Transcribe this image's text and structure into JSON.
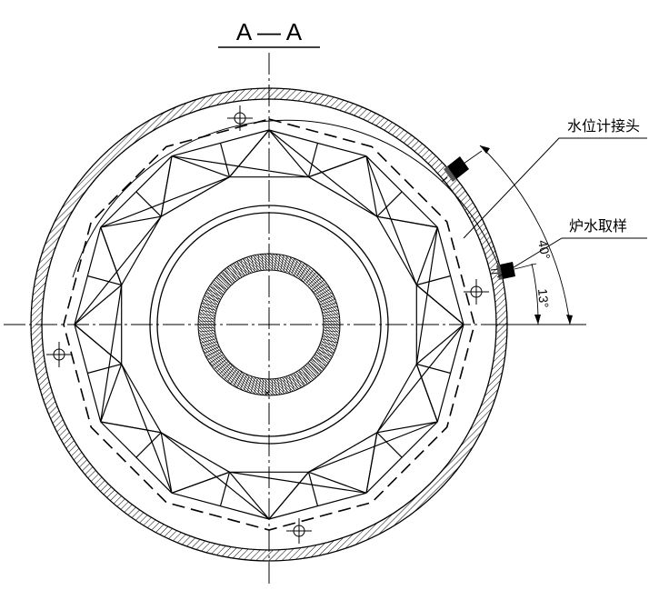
{
  "section_title": "A — A",
  "labels": {
    "water_level_fitting": "水位计接头",
    "boiler_water_sampling": "炉水取样"
  },
  "dimensions": {
    "angle_upper": "40°",
    "angle_lower": "13°"
  },
  "colors": {
    "line": "#000000",
    "background": "#ffffff"
  }
}
